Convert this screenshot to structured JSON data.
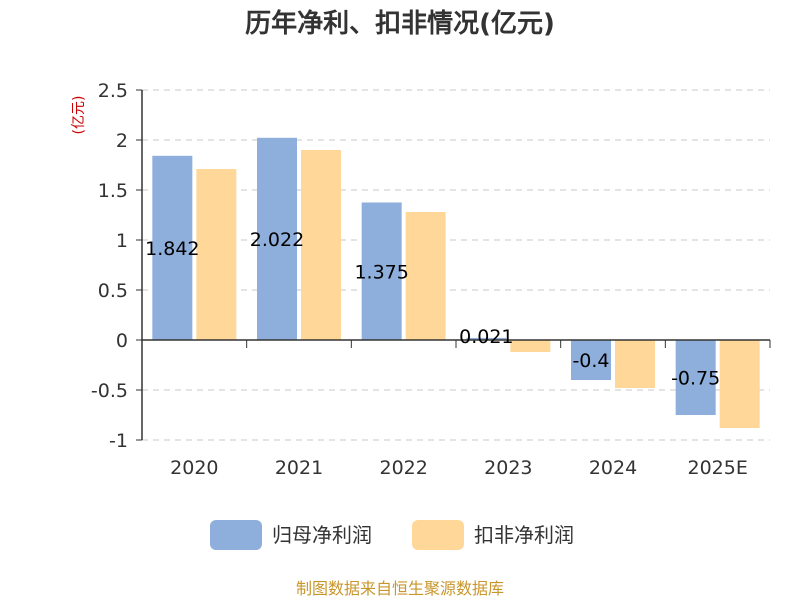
{
  "chart_data": {
    "type": "bar",
    "title": "历年净利、扣非情况(亿元)",
    "ylabel": "(亿元)",
    "xlabel": "",
    "categories": [
      "2020",
      "2021",
      "2022",
      "2023",
      "2024",
      "2025E"
    ],
    "series": [
      {
        "name": "归母净利润",
        "color": "#8eaedb",
        "values": [
          1.842,
          2.022,
          1.375,
          0.021,
          -0.4,
          -0.75
        ],
        "labels": [
          "1.842",
          "2.022",
          "1.375",
          "0.021",
          "-0.4",
          "-0.75"
        ]
      },
      {
        "name": "扣非净利润",
        "color": "#ffd899",
        "values": [
          1.71,
          1.9,
          1.28,
          -0.12,
          -0.48,
          -0.88
        ]
      }
    ],
    "ylim": [
      -1,
      2.5
    ],
    "yticks": [
      "2.5",
      "2",
      "1.5",
      "1",
      "0.5",
      "0",
      "-0.5",
      "-1"
    ],
    "grid": true,
    "legend_position": "bottom",
    "ylabel_color": "#cc0000"
  },
  "source": {
    "text": "制图数据来自恒生聚源数据库",
    "color": "#c8962c"
  }
}
